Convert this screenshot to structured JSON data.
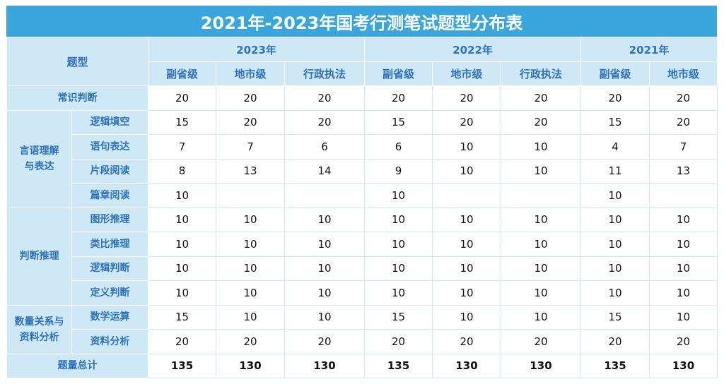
{
  "title": "2021年-2023年国考行测笔试题型分布表",
  "header": {
    "type_label": "题型",
    "years": [
      "2023年",
      "2022年",
      "2021年"
    ],
    "levels_2023": [
      "副省级",
      "地市级",
      "行政执法"
    ],
    "levels_2022": [
      "副省级",
      "地市级",
      "行政执法"
    ],
    "levels_2021": [
      "副省级",
      "地市级"
    ]
  },
  "categories": {
    "common_sense": "常识判断",
    "verbal": "言语理解与表达",
    "judgment": "判断推理",
    "quant": "数量关系与资料分析",
    "total": "题量总计"
  },
  "subtypes": {
    "logic_fill": "逻辑填空",
    "sentence": "语句表达",
    "paragraph": "片段阅读",
    "article": "篇章阅读",
    "figure": "图形推理",
    "analogy": "类比推理",
    "logic_judge": "逻辑判断",
    "definition": "定义判断",
    "math": "数学运算",
    "data": "资料分析"
  },
  "rows": {
    "common_sense": [
      "20",
      "20",
      "20",
      "20",
      "20",
      "20",
      "20",
      "20"
    ],
    "logic_fill": [
      "15",
      "20",
      "20",
      "15",
      "20",
      "20",
      "15",
      "20"
    ],
    "sentence": [
      "7",
      "7",
      "6",
      "6",
      "10",
      "10",
      "4",
      "7"
    ],
    "paragraph": [
      "8",
      "13",
      "14",
      "9",
      "10",
      "10",
      "11",
      "13"
    ],
    "article": [
      "10",
      "",
      "",
      "10",
      "",
      "",
      "10",
      ""
    ],
    "figure": [
      "10",
      "10",
      "10",
      "10",
      "10",
      "10",
      "10",
      "10"
    ],
    "analogy": [
      "10",
      "10",
      "10",
      "10",
      "10",
      "10",
      "10",
      "10"
    ],
    "logic_judge": [
      "10",
      "10",
      "10",
      "10",
      "10",
      "10",
      "10",
      "10"
    ],
    "definition": [
      "10",
      "10",
      "10",
      "10",
      "10",
      "10",
      "10",
      "10"
    ],
    "math": [
      "15",
      "10",
      "10",
      "15",
      "10",
      "10",
      "15",
      "10"
    ],
    "data": [
      "20",
      "20",
      "20",
      "20",
      "20",
      "20",
      "20",
      "20"
    ],
    "total": [
      "135",
      "130",
      "130",
      "135",
      "130",
      "130",
      "135",
      "130"
    ]
  }
}
